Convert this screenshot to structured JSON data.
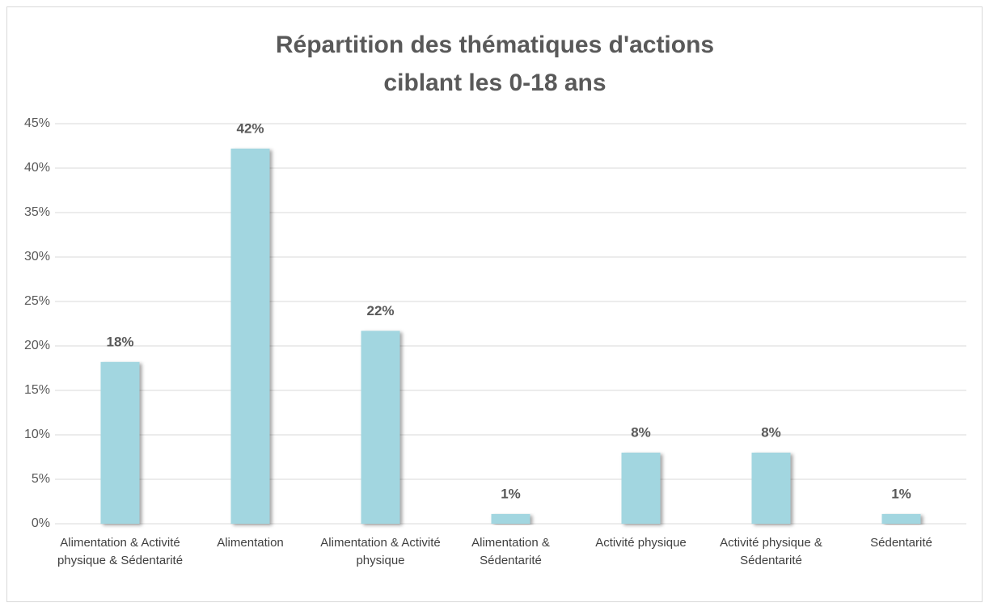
{
  "chart_data": {
    "type": "bar",
    "title": [
      "Répartition des thématiques d'actions",
      "ciblant les 0-18 ans"
    ],
    "categories": [
      "Alimentation & Activité physique & Sédentarité",
      "Alimentation",
      "Alimentation & Activité physique",
      "Alimentation & Sédentarité",
      "Activité physique",
      "Activité physique & Sédentarité",
      "Sédentarité"
    ],
    "values": [
      18.2,
      42.2,
      21.7,
      1.1,
      8.0,
      8.0,
      1.1
    ],
    "value_labels": [
      "18%",
      "42%",
      "22%",
      "1%",
      "8%",
      "8%",
      "1%"
    ],
    "color": "#a2d6e0",
    "ylim": [
      0,
      45
    ],
    "yticks": [
      {
        "value": 0,
        "label": "0%"
      },
      {
        "value": 5,
        "label": "5%"
      },
      {
        "value": 10,
        "label": "10%"
      },
      {
        "value": 15,
        "label": "15%"
      },
      {
        "value": 20,
        "label": "20%"
      },
      {
        "value": 25,
        "label": "25%"
      },
      {
        "value": 30,
        "label": "30%"
      },
      {
        "value": 35,
        "label": "35%"
      },
      {
        "value": 40,
        "label": "40%"
      },
      {
        "value": 45,
        "label": "45%"
      }
    ],
    "grid": true
  }
}
